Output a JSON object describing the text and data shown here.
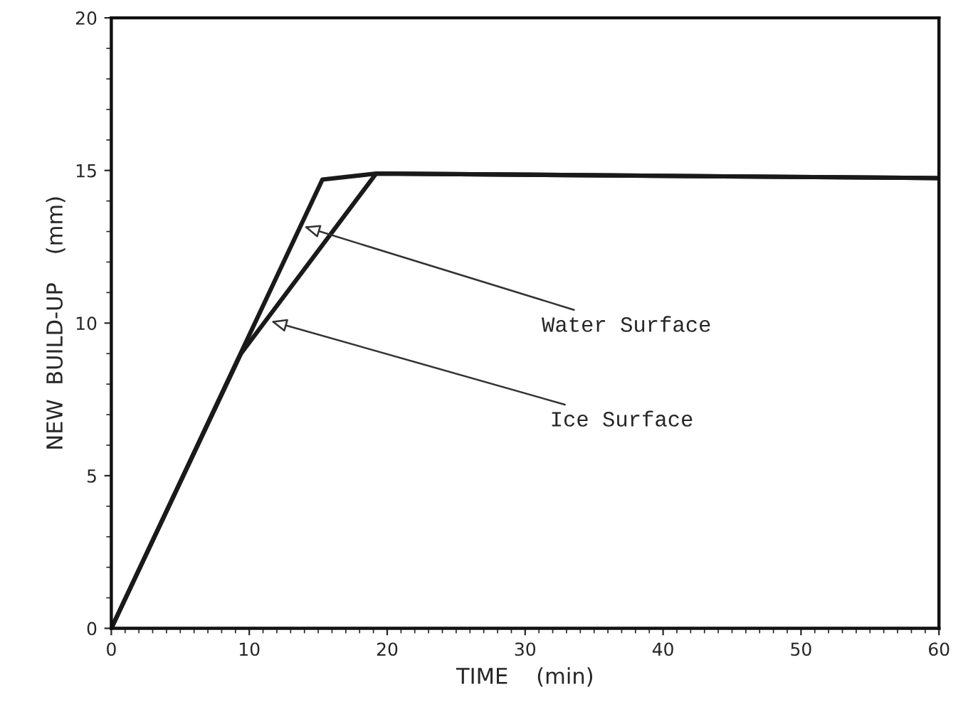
{
  "chart_data": {
    "type": "line",
    "xlabel": "TIME    (min)",
    "ylabel": "NEW  BUILD-UP    (mm)",
    "xlim": [
      0,
      60
    ],
    "ylim": [
      0,
      20
    ],
    "xticks": [
      0,
      10,
      20,
      30,
      40,
      50,
      60
    ],
    "yticks": [
      0,
      5,
      10,
      15,
      20
    ],
    "grid": false,
    "legend": false,
    "marker": "none",
    "line_style": "solid",
    "annotations": [
      {
        "text": "Water Surface",
        "x": 13.7,
        "y": 13.2
      },
      {
        "text": "Ice Surface",
        "x": 11.3,
        "y": 10.1
      }
    ],
    "series": [
      {
        "color": "#1a1a1a",
        "x": [
          0,
          15.3,
          19.2,
          60
        ],
        "values": [
          0,
          14.7,
          14.9,
          14.75
        ]
      },
      {
        "color": "#1a1a1a",
        "x": [
          0,
          9.4,
          19.2,
          60
        ],
        "values": [
          0,
          9.0,
          14.9,
          14.75
        ]
      }
    ]
  }
}
